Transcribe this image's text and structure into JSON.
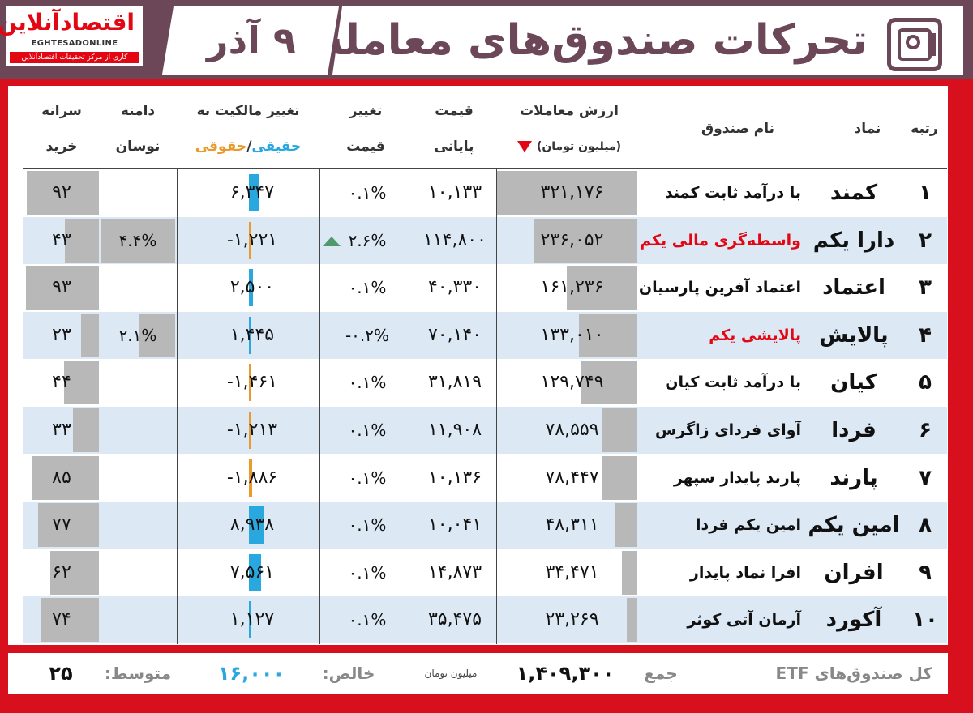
{
  "header": {
    "title": "تحرکات صندوق‌های معامله‌پذیر",
    "date": "۹ آذر",
    "logo_fa": "اقتصادآنلاین",
    "logo_en": "EGHTESADONLINE",
    "logo_sub": "کاری از مرکز تحقیقات اقتصادآنلاین"
  },
  "columns": {
    "rank": "رتبه",
    "symbol": "نماد",
    "name": "نام صندوق",
    "value_l1": "ارزش معاملات",
    "value_l2": "(میلیون تومان)",
    "price_l1": "قیمت",
    "price_l2": "پایانی",
    "change_l1": "تغییر",
    "change_l2": "قیمت",
    "own_l1": "تغییر مالکیت به",
    "own_real": "حقیقی",
    "own_sep": "/",
    "own_legal": "حقوقی",
    "range_l1": "دامنه",
    "range_l2": "نوسان",
    "percap_l1": "سرانه",
    "percap_l2": "خرید"
  },
  "colors": {
    "header_bg": "#6b4758",
    "frame": "#d8101e",
    "real": "#29a8e0",
    "legal": "#e89a2c",
    "bar": "#b8b8b8",
    "row_alt": "#dce9f5"
  },
  "rows": [
    {
      "rank": "۱",
      "symbol": "کمند",
      "name": "با درآمد ثابت کمند",
      "name_red": false,
      "value": "۳۲۱,۱۷۶",
      "value_num": 321176,
      "price": "۱۰,۱۳۳",
      "change": "۰.۱%",
      "change_up": false,
      "own": "۶,۳۴۷",
      "own_num": 6347,
      "range": "",
      "range_num": 0,
      "percap": "۹۲",
      "percap_num": 92
    },
    {
      "rank": "۲",
      "symbol": "دارا یکم",
      "name": "واسطه‌گری مالی یکم",
      "name_red": true,
      "value": "۲۳۶,۰۵۲",
      "value_num": 236052,
      "price": "۱۱۴,۸۰۰",
      "change": "۲.۶%",
      "change_up": true,
      "own": "-۱,۲۲۱",
      "own_num": -1221,
      "range": "۴.۴%",
      "range_num": 4.4,
      "percap": "۴۳",
      "percap_num": 43
    },
    {
      "rank": "۳",
      "symbol": "اعتماد",
      "name": "اعتماد آفرین پارسیان",
      "name_red": false,
      "value": "۱۶۱,۲۳۶",
      "value_num": 161236,
      "price": "۴۰,۳۳۰",
      "change": "۰.۱%",
      "change_up": false,
      "own": "۲,۵۰۰",
      "own_num": 2500,
      "range": "",
      "range_num": 0,
      "percap": "۹۳",
      "percap_num": 93
    },
    {
      "rank": "۴",
      "symbol": "پالایش",
      "name": "پالایشی یکم",
      "name_red": true,
      "value": "۱۳۳,۰۱۰",
      "value_num": 133010,
      "price": "۷۰,۱۴۰",
      "change": "-۰.۲%",
      "change_up": false,
      "own": "۱,۴۴۵",
      "own_num": 1445,
      "range": "۲.۱%",
      "range_num": 2.1,
      "percap": "۲۳",
      "percap_num": 23
    },
    {
      "rank": "۵",
      "symbol": "کیان",
      "name": "با درآمد ثابت کیان",
      "name_red": false,
      "value": "۱۲۹,۷۴۹",
      "value_num": 129749,
      "price": "۳۱,۸۱۹",
      "change": "۰.۱%",
      "change_up": false,
      "own": "-۱,۴۶۱",
      "own_num": -1461,
      "range": "",
      "range_num": 0,
      "percap": "۴۴",
      "percap_num": 44
    },
    {
      "rank": "۶",
      "symbol": "فردا",
      "name": "آوای فردای زاگرس",
      "name_red": false,
      "value": "۷۸,۵۵۹",
      "value_num": 78559,
      "price": "۱۱,۹۰۸",
      "change": "۰.۱%",
      "change_up": false,
      "own": "-۱,۲۱۳",
      "own_num": -1213,
      "range": "",
      "range_num": 0,
      "percap": "۳۳",
      "percap_num": 33
    },
    {
      "rank": "۷",
      "symbol": "پارند",
      "name": "پارند پایدار سپهر",
      "name_red": false,
      "value": "۷۸,۴۴۷",
      "value_num": 78447,
      "price": "۱۰,۱۳۶",
      "change": "۰.۱%",
      "change_up": false,
      "own": "-۱,۸۸۶",
      "own_num": -1886,
      "range": "",
      "range_num": 0,
      "percap": "۸۵",
      "percap_num": 85
    },
    {
      "rank": "۸",
      "symbol": "امین یکم",
      "name": "امین یکم فردا",
      "name_red": false,
      "value": "۴۸,۳۱۱",
      "value_num": 48311,
      "price": "۱۰,۰۴۱",
      "change": "۰.۱%",
      "change_up": false,
      "own": "۸,۹۳۸",
      "own_num": 8938,
      "range": "",
      "range_num": 0,
      "percap": "۷۷",
      "percap_num": 77
    },
    {
      "rank": "۹",
      "symbol": "افران",
      "name": "افرا نماد پایدار",
      "name_red": false,
      "value": "۳۴,۴۷۱",
      "value_num": 34471,
      "price": "۱۴,۸۷۳",
      "change": "۰.۱%",
      "change_up": false,
      "own": "۷,۵۶۱",
      "own_num": 7561,
      "range": "",
      "range_num": 0,
      "percap": "۶۲",
      "percap_num": 62
    },
    {
      "rank": "۱۰",
      "symbol": "آکورد",
      "name": "آرمان آتی کوثر",
      "name_red": false,
      "value": "۲۳,۲۶۹",
      "value_num": 23269,
      "price": "۳۵,۴۷۵",
      "change": "۰.۱%",
      "change_up": false,
      "own": "۱,۱۲۷",
      "own_num": 1127,
      "range": "",
      "range_num": 0,
      "percap": "۷۴",
      "percap_num": 74
    }
  ],
  "footer": {
    "all_label": "کل صندوق‌های ETF",
    "sum_label": "جمع",
    "sum_value": "۱,۴۰۹,۳۰۰",
    "unit": "میلیون تومان",
    "net_label": "خالص:",
    "net_value": "۱۶,۰۰۰",
    "avg_label": "متوسط:",
    "avg_value": "۲۵"
  }
}
